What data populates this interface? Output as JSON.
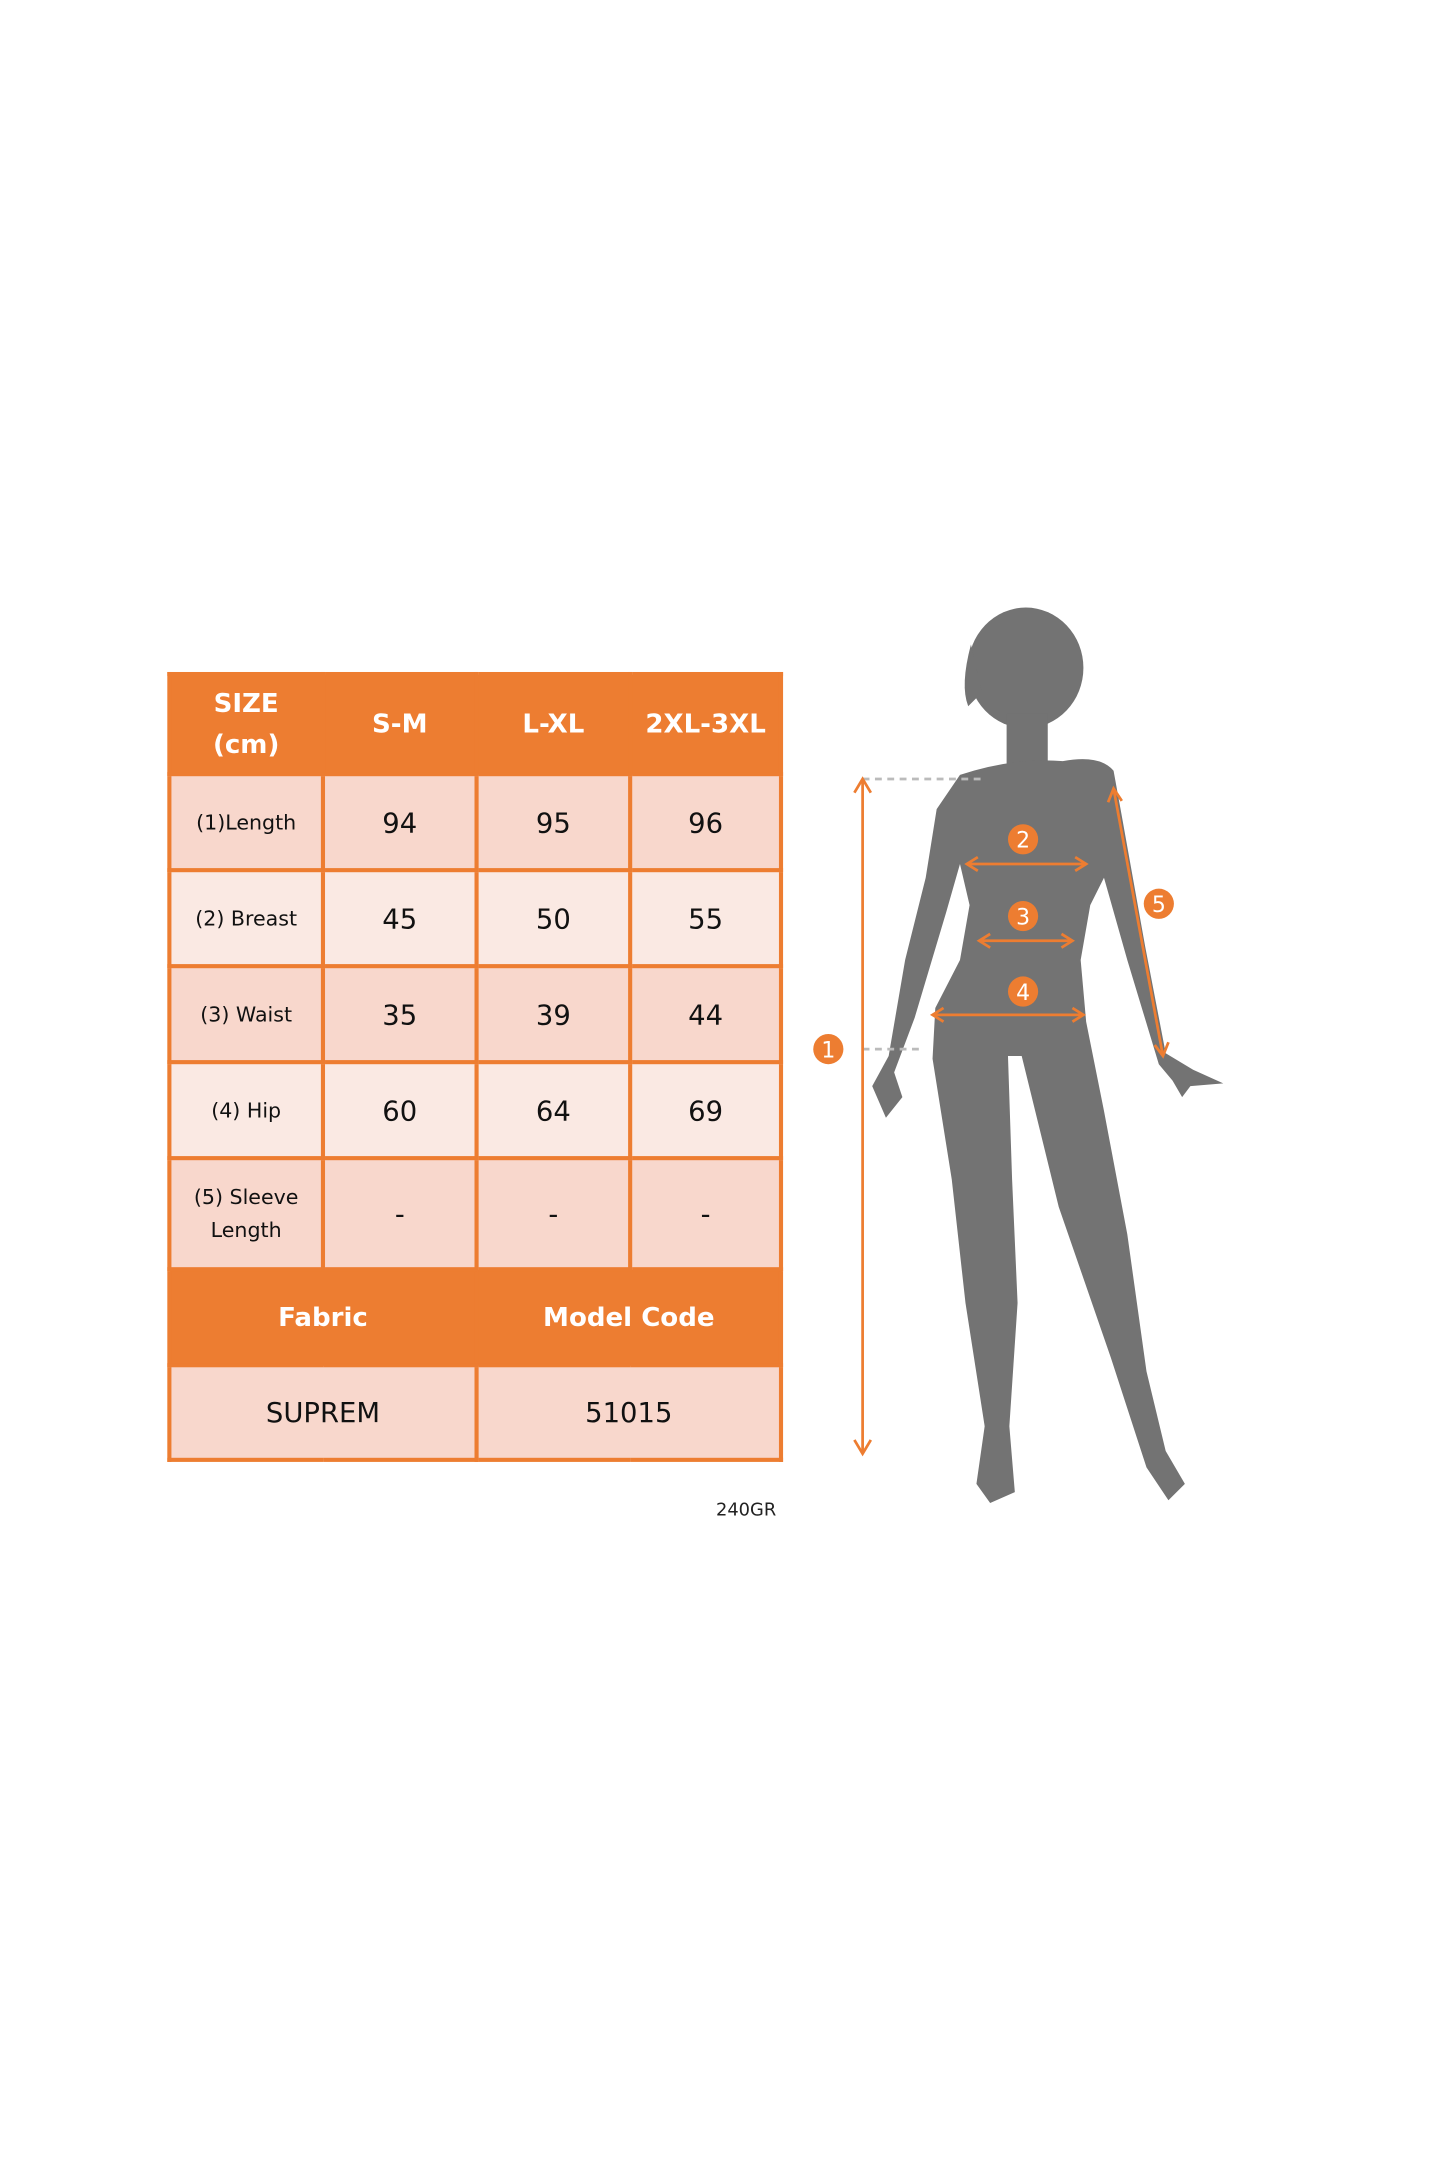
{
  "table": {
    "header": [
      "SIZE (cm)",
      "S-M",
      "L-XL",
      "2XL-3XL"
    ],
    "rows": [
      {
        "label": "(1)Length",
        "values": [
          "94",
          "95",
          "96"
        ]
      },
      {
        "label": "(2) Breast",
        "values": [
          "45",
          "50",
          "55"
        ]
      },
      {
        "label": "(3) Waist",
        "values": [
          "35",
          "39",
          "44"
        ]
      },
      {
        "label": "(4) Hip",
        "values": [
          "60",
          "64",
          "69"
        ]
      },
      {
        "label": "(5) Sleeve Length",
        "values": [
          "-",
          "-",
          "-"
        ]
      }
    ],
    "fabric_header": "Fabric",
    "model_code_header": "Model Code",
    "fabric_value": "SUPREM",
    "model_code_value": "51015"
  },
  "weight_note": "240GR",
  "diagram": {
    "markers": [
      "1",
      "2",
      "3",
      "4",
      "5"
    ],
    "accent_color": "#ed7d31",
    "silhouette_color": "#737373"
  }
}
